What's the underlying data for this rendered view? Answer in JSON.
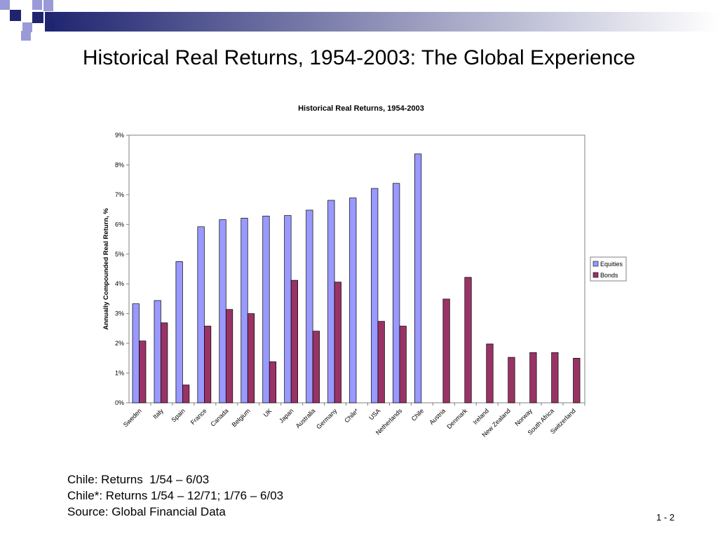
{
  "slide": {
    "title": "Historical Real Returns, 1954-2003: The Global Experience",
    "notes": [
      "Chile: Returns  1/54 – 6/03",
      "Chile*: Returns 1/54 – 12/71; 1/76 – 6/03",
      "Source: Global Financial Data"
    ],
    "slide_number": "1 - 2"
  },
  "colors": {
    "equities": "#9999ff",
    "bonds": "#993366",
    "header_bar_start": "#1f2470",
    "header_bar_end": "#ffffff",
    "deco_square_dark": "#1f2470",
    "deco_square_light": "#9a9ad8"
  },
  "chart_data": {
    "type": "bar",
    "title": "Historical Real Returns, 1954-2003",
    "xlabel": "",
    "ylabel": "Annually Compounded Real Return, %",
    "ylim": [
      0,
      9
    ],
    "yticks": [
      "0%",
      "1%",
      "2%",
      "3%",
      "4%",
      "5%",
      "6%",
      "7%",
      "8%",
      "9%"
    ],
    "grid": false,
    "legend": "right",
    "categories": [
      "Sweden",
      "Italy",
      "Spain",
      "France",
      "Canada",
      "Belgium",
      "UK",
      "Japan",
      "Australia",
      "Germany",
      "Chile*",
      "USA",
      "Netherlands",
      "Chile",
      "Austria",
      "Denmark",
      "Ireland",
      "New Zealand",
      "Norway",
      "South Africa",
      "Switzerland"
    ],
    "series": [
      {
        "name": "Equities",
        "values": [
          3.33,
          3.44,
          4.75,
          5.92,
          6.16,
          6.21,
          6.28,
          6.3,
          6.48,
          6.81,
          6.89,
          7.21,
          7.38,
          8.37,
          null,
          null,
          null,
          null,
          null,
          null,
          null
        ]
      },
      {
        "name": "Bonds",
        "values": [
          2.08,
          2.69,
          0.6,
          2.58,
          3.14,
          3.0,
          1.38,
          4.12,
          2.41,
          4.06,
          null,
          2.74,
          2.58,
          null,
          3.49,
          4.22,
          1.98,
          1.53,
          1.69,
          1.69,
          1.5
        ]
      }
    ]
  }
}
